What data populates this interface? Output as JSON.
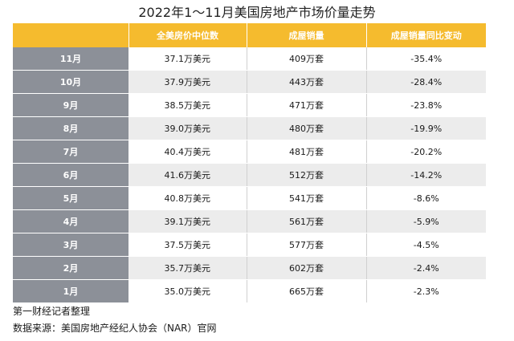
{
  "chart_data": {
    "type": "table",
    "title": "2022年1～11月美国房地产市场价量走势",
    "columns": [
      "",
      "全美房价中位数",
      "成屋销量",
      "成屋销量同比变动"
    ],
    "rows": [
      {
        "month": "11月",
        "median_price": "37.1万美元",
        "sales": "409万套",
        "yoy": "-35.4%"
      },
      {
        "month": "10月",
        "median_price": "37.9万美元",
        "sales": "443万套",
        "yoy": "-28.4%"
      },
      {
        "month": "9月",
        "median_price": "38.5万美元",
        "sales": "471万套",
        "yoy": "-23.8%"
      },
      {
        "month": "8月",
        "median_price": "39.0万美元",
        "sales": "480万套",
        "yoy": "-19.9%"
      },
      {
        "month": "7月",
        "median_price": "40.4万美元",
        "sales": "481万套",
        "yoy": "-20.2%"
      },
      {
        "month": "6月",
        "median_price": "41.6万美元",
        "sales": "512万套",
        "yoy": "-14.2%"
      },
      {
        "month": "5月",
        "median_price": "40.8万美元",
        "sales": "541万套",
        "yoy": "-8.6%"
      },
      {
        "month": "4月",
        "median_price": "39.1万美元",
        "sales": "561万套",
        "yoy": "-5.9%"
      },
      {
        "month": "3月",
        "median_price": "37.5万美元",
        "sales": "577万套",
        "yoy": "-4.5%"
      },
      {
        "month": "2月",
        "median_price": "35.7万美元",
        "sales": "602万套",
        "yoy": "-2.4%"
      },
      {
        "month": "1月",
        "median_price": "35.0万美元",
        "sales": "665万套",
        "yoy": "-2.3%"
      }
    ]
  },
  "footer": {
    "note": "第一财经记者整理",
    "source": "数据来源：美国房地产经纪人协会（NAR）官网"
  },
  "colors": {
    "header_bg": "#f5bb2e",
    "month_col_bg": "#8c9098",
    "stripe_bg": "#ececec"
  }
}
